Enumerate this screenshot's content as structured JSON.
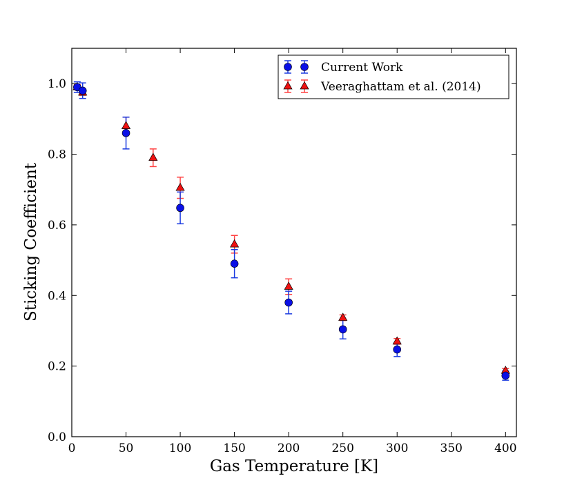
{
  "chart_data": {
    "type": "scatter",
    "title": "",
    "xlabel": "Gas Temperature [K]",
    "ylabel": "Sticking Coefficient",
    "xlim": [
      0,
      410
    ],
    "ylim": [
      0.0,
      1.1
    ],
    "xticks": [
      0,
      50,
      100,
      150,
      200,
      250,
      300,
      350,
      400
    ],
    "xtick_labels": [
      "0",
      "50",
      "100",
      "150",
      "200",
      "250",
      "300",
      "350",
      "400"
    ],
    "yticks": [
      0.0,
      0.2,
      0.4,
      0.6,
      0.8,
      1.0
    ],
    "ytick_labels": [
      "0.0",
      "0.2",
      "0.4",
      "0.6",
      "0.8",
      "1.0"
    ],
    "grid": false,
    "legend_position": "top-right",
    "series": [
      {
        "name": "Veeraghattam et al. (2014)",
        "marker": "triangle",
        "color": "#ee1111",
        "error_color": "#ff4444",
        "points": [
          {
            "x": 5,
            "y": 0.99,
            "err": 0.007
          },
          {
            "x": 10,
            "y": 0.975,
            "err": 0.008
          },
          {
            "x": 50,
            "y": 0.88,
            "err": 0.025
          },
          {
            "x": 75,
            "y": 0.79,
            "err": 0.025
          },
          {
            "x": 100,
            "y": 0.705,
            "err": 0.03
          },
          {
            "x": 150,
            "y": 0.545,
            "err": 0.025
          },
          {
            "x": 200,
            "y": 0.425,
            "err": 0.022
          },
          {
            "x": 250,
            "y": 0.337,
            "err": 0.008
          },
          {
            "x": 300,
            "y": 0.27,
            "err": 0.008
          },
          {
            "x": 400,
            "y": 0.187,
            "err": 0.006
          }
        ]
      },
      {
        "name": "Current Work",
        "marker": "circle",
        "color": "#0a10e6",
        "error_color": "#1a3ae0",
        "points": [
          {
            "x": 5,
            "y": 0.99,
            "err": 0.015
          },
          {
            "x": 10,
            "y": 0.98,
            "err": 0.022
          },
          {
            "x": 50,
            "y": 0.86,
            "err": 0.045
          },
          {
            "x": 100,
            "y": 0.648,
            "err": 0.045
          },
          {
            "x": 150,
            "y": 0.49,
            "err": 0.04
          },
          {
            "x": 200,
            "y": 0.38,
            "err": 0.032
          },
          {
            "x": 250,
            "y": 0.304,
            "err": 0.027
          },
          {
            "x": 300,
            "y": 0.247,
            "err": 0.02
          },
          {
            "x": 400,
            "y": 0.173,
            "err": 0.013
          }
        ]
      }
    ],
    "legend_order": [
      "Current Work",
      "Veeraghattam et al. (2014)"
    ]
  }
}
